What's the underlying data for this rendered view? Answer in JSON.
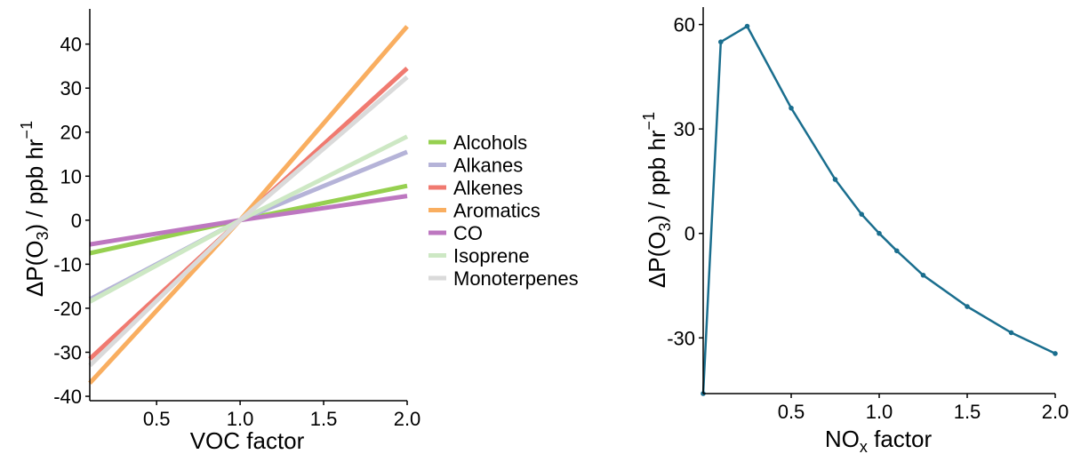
{
  "chart_data": [
    {
      "type": "line",
      "xlabel": "VOC factor",
      "ylabel_parts": [
        "ΔP(O",
        "3",
        ") / ppb hr",
        "−1"
      ],
      "xlim": [
        0.1,
        2.0
      ],
      "ylim": [
        -41,
        48
      ],
      "xticks": [
        0.5,
        1.0,
        1.5,
        2.0
      ],
      "xtick_labels": [
        "0.5",
        "1.0",
        "1.5",
        "2.0"
      ],
      "yticks": [
        -40,
        -30,
        -20,
        -10,
        0,
        10,
        20,
        30,
        40
      ],
      "ytick_labels": [
        "-40",
        "-30",
        "-20",
        "-10",
        "0",
        "10",
        "20",
        "30",
        "40"
      ],
      "grid": false,
      "legend_position": "right",
      "series": [
        {
          "name": "Alcohols",
          "color": "#96d050",
          "x": [
            0.1,
            1.0,
            2.0
          ],
          "y": [
            -7.5,
            0,
            7.8
          ]
        },
        {
          "name": "Alkanes",
          "color": "#b5b3d8",
          "x": [
            0.1,
            1.0,
            2.0
          ],
          "y": [
            -18.0,
            0,
            15.5
          ]
        },
        {
          "name": "Alkenes",
          "color": "#f07a70",
          "x": [
            0.1,
            1.0,
            2.0
          ],
          "y": [
            -31.5,
            0,
            34.5
          ]
        },
        {
          "name": "Aromatics",
          "color": "#f9ae60",
          "x": [
            0.1,
            1.0,
            2.0
          ],
          "y": [
            -37.0,
            0,
            44.0
          ]
        },
        {
          "name": "CO",
          "color": "#bd77c0",
          "x": [
            0.1,
            1.0,
            2.0
          ],
          "y": [
            -5.5,
            0,
            5.5
          ]
        },
        {
          "name": "Isoprene",
          "color": "#cde8c4",
          "x": [
            0.1,
            1.0,
            2.0
          ],
          "y": [
            -18.5,
            0,
            19.0
          ]
        },
        {
          "name": "Monoterpenes",
          "color": "#dadada",
          "x": [
            0.1,
            1.0,
            2.0
          ],
          "y": [
            -33.0,
            0,
            32.5
          ]
        }
      ]
    },
    {
      "type": "line",
      "xlabel_parts": [
        "NO",
        "x",
        " factor"
      ],
      "ylabel_parts": [
        "ΔP(O",
        "3",
        ") / ppb hr",
        "−1"
      ],
      "xlim": [
        0.0,
        2.0
      ],
      "ylim": [
        -46,
        65
      ],
      "xticks": [
        0.5,
        1.0,
        1.5,
        2.0
      ],
      "xtick_labels": [
        "0.5",
        "1.0",
        "1.5",
        "2.0"
      ],
      "yticks": [
        -30,
        0,
        30,
        60
      ],
      "ytick_labels": [
        "-30",
        "0",
        "30",
        "60"
      ],
      "grid": false,
      "series": [
        {
          "color": "#1a6e8e",
          "x": [
            0.0,
            0.1,
            0.25,
            0.5,
            0.75,
            0.9,
            1.0,
            1.1,
            1.25,
            1.5,
            1.75,
            2.0
          ],
          "y": [
            -46,
            55,
            59.5,
            36,
            15.5,
            5.5,
            0,
            -5,
            -12,
            -21,
            -28.5,
            -34.5
          ]
        }
      ]
    }
  ]
}
